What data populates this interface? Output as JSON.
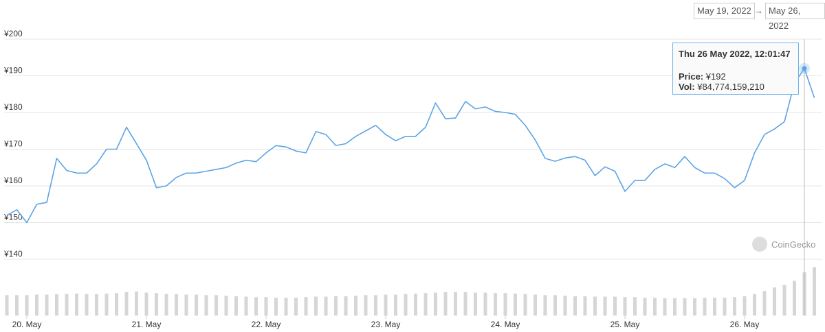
{
  "date_range": {
    "from": "May 19, 2022",
    "to": "May 26, 2022"
  },
  "tooltip": {
    "date": "Thu 26 May 2022, 12:01:47",
    "price_label": "Price:",
    "price": "¥192",
    "vol_label": "Vol:",
    "vol": "¥84,774,159,210"
  },
  "watermark": "CoinGecko",
  "chart_data": {
    "type": "line",
    "categories": [
      null,
      null,
      "20. May",
      null,
      null,
      null,
      null,
      null,
      null,
      null,
      null,
      null,
      null,
      null,
      "21. May",
      null,
      null,
      null,
      null,
      null,
      null,
      null,
      null,
      null,
      null,
      null,
      "22. May",
      null,
      null,
      null,
      null,
      null,
      null,
      null,
      null,
      null,
      null,
      null,
      "23. May",
      null,
      null,
      null,
      null,
      null,
      null,
      null,
      null,
      null,
      null,
      null,
      "24. May",
      null,
      null,
      null,
      null,
      null,
      null,
      null,
      null,
      null,
      null,
      null,
      "25. May",
      null,
      null,
      null,
      null,
      null,
      null,
      null,
      null,
      null,
      null,
      null,
      "26. May",
      null,
      null,
      null,
      null,
      null,
      null,
      null
    ],
    "series": [
      {
        "type": "line",
        "color": "#5ba4e6",
        "values": [
          152,
          153.5,
          150,
          155,
          155.5,
          167.5,
          164.2,
          163.5,
          163.5,
          166,
          170,
          170,
          176,
          171.5,
          167,
          159.5,
          160,
          162.3,
          163.5,
          163.5,
          164,
          164.5,
          165,
          166.2,
          167,
          166.6,
          169,
          171,
          170.6,
          169.5,
          169,
          174.8,
          174,
          171,
          171.5,
          173.5,
          175,
          176.5,
          174,
          172.3,
          173.5,
          173.5,
          176,
          182.6,
          178.3,
          178.5,
          183,
          181,
          181.5,
          180.3,
          180,
          179.5,
          176.5,
          172.5,
          167.5,
          166.7,
          167.6,
          168,
          167,
          162.8,
          165.2,
          164,
          158.5,
          161.5,
          161.5,
          164.5,
          166,
          165,
          168,
          165,
          163.5,
          163.5,
          162,
          159.5,
          161.5,
          169,
          174,
          175.5,
          177.5,
          188,
          192,
          184
        ]
      },
      {
        "type": "bar",
        "axis": "y2",
        "color": "#d6d6d9",
        "values": [
          40000000000,
          40000000000,
          40000000000,
          41000000000,
          41000000000,
          42000000000,
          42000000000,
          43000000000,
          42000000000,
          42000000000,
          43000000000,
          44000000000,
          46000000000,
          47000000000,
          45000000000,
          44000000000,
          42000000000,
          42000000000,
          41000000000,
          41000000000,
          40000000000,
          40000000000,
          39000000000,
          38000000000,
          37000000000,
          36000000000,
          36000000000,
          35000000000,
          35000000000,
          35000000000,
          36000000000,
          37000000000,
          37000000000,
          38000000000,
          38000000000,
          39000000000,
          40000000000,
          40000000000,
          41000000000,
          41000000000,
          42000000000,
          43000000000,
          44000000000,
          45000000000,
          46000000000,
          46000000000,
          46000000000,
          45000000000,
          45000000000,
          44000000000,
          44000000000,
          43000000000,
          42000000000,
          41000000000,
          40000000000,
          40000000000,
          39000000000,
          38000000000,
          38000000000,
          37000000000,
          37000000000,
          37000000000,
          36000000000,
          36000000000,
          35000000000,
          35000000000,
          34000000000,
          34000000000,
          34000000000,
          34000000000,
          35000000000,
          35000000000,
          35000000000,
          36000000000,
          38000000000,
          42000000000,
          48000000000,
          55000000000,
          60000000000,
          68000000000,
          84774159210,
          95000000000
        ]
      }
    ],
    "ylim": [
      140,
      200
    ],
    "yticks": [
      {
        "value": 140,
        "label": "¥140"
      },
      {
        "value": 150,
        "label": "¥150"
      },
      {
        "value": 160,
        "label": "¥160"
      },
      {
        "value": 170,
        "label": "¥170"
      },
      {
        "value": 180,
        "label": "¥180"
      },
      {
        "value": 190,
        "label": "¥190"
      },
      {
        "value": 200,
        "label": "¥200"
      }
    ],
    "y2lim": [
      0,
      160000000000
    ],
    "grid": true,
    "highlight": 80
  }
}
